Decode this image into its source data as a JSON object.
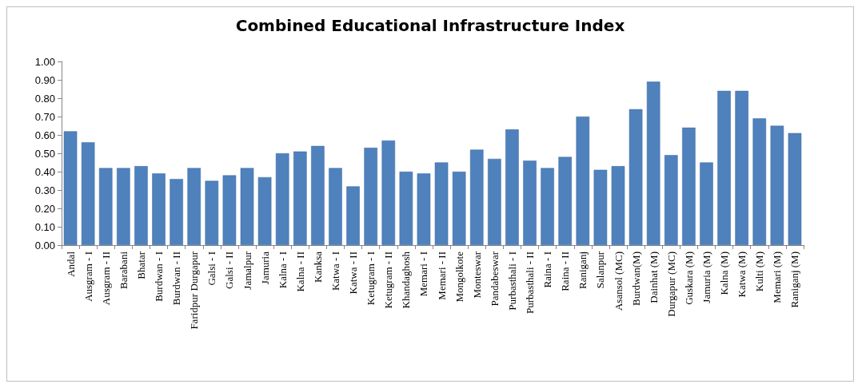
{
  "chart_data": {
    "type": "bar",
    "title": "Combined Educational Infrastructure Index",
    "categories": [
      "Andal",
      "Ausgram - I",
      "Ausgram - II",
      "Barabani",
      "Bhatar",
      "Burdwan - I",
      "Burdwan - II",
      "Faridpur Durgapur",
      "Galsi - I",
      "Galsi - II",
      "Jamalpur",
      "Jamuria",
      "Kalna - I",
      "Kalna - II",
      "Kanksa",
      "Katwa - I",
      "Katwa - II",
      "Ketugram - I",
      "Ketugram - II",
      "Khandaghosh",
      "Memari - I",
      "Memari - II",
      "Mongolkote",
      "Monteswar",
      "Pandabeswar",
      "Purbasthali - I",
      "Purbasthali - II",
      "Raina - I",
      "Raina - II",
      "Raniganj",
      "Salanpur",
      "Asansol (MC)",
      "Burdwan(M)",
      "Dainhat (M)",
      "Durgapur (MC)",
      "Guskara (M)",
      "Jamuria (M)",
      "Kalna (M)",
      "Katwa (M)",
      "Kulti (M)",
      "Memari (M)",
      "Raniganj (M)"
    ],
    "values": [
      0.62,
      0.56,
      0.42,
      0.42,
      0.43,
      0.39,
      0.36,
      0.42,
      0.35,
      0.38,
      0.42,
      0.37,
      0.5,
      0.51,
      0.54,
      0.42,
      0.32,
      0.53,
      0.57,
      0.4,
      0.39,
      0.45,
      0.4,
      0.52,
      0.47,
      0.63,
      0.46,
      0.42,
      0.48,
      0.7,
      0.41,
      0.43,
      0.74,
      0.89,
      0.49,
      0.64,
      0.45,
      0.84,
      0.84,
      0.69,
      0.65,
      0.61
    ],
    "color": "#4f81bd",
    "ylim": [
      0,
      1
    ],
    "yticks": [
      {
        "value": 0,
        "label": "0.00"
      },
      {
        "value": 0.1,
        "label": "0.10"
      },
      {
        "value": 0.2,
        "label": "0.20"
      },
      {
        "value": 0.3,
        "label": "0.30"
      },
      {
        "value": 0.4,
        "label": "0.40"
      },
      {
        "value": 0.5,
        "label": "0.50"
      },
      {
        "value": 0.6,
        "label": "0.60"
      },
      {
        "value": 0.7,
        "label": "0.70"
      },
      {
        "value": 0.8,
        "label": "0.80"
      },
      {
        "value": 0.9,
        "label": "0.90"
      },
      {
        "value": 1,
        "label": "1.00"
      }
    ],
    "grid": false
  }
}
